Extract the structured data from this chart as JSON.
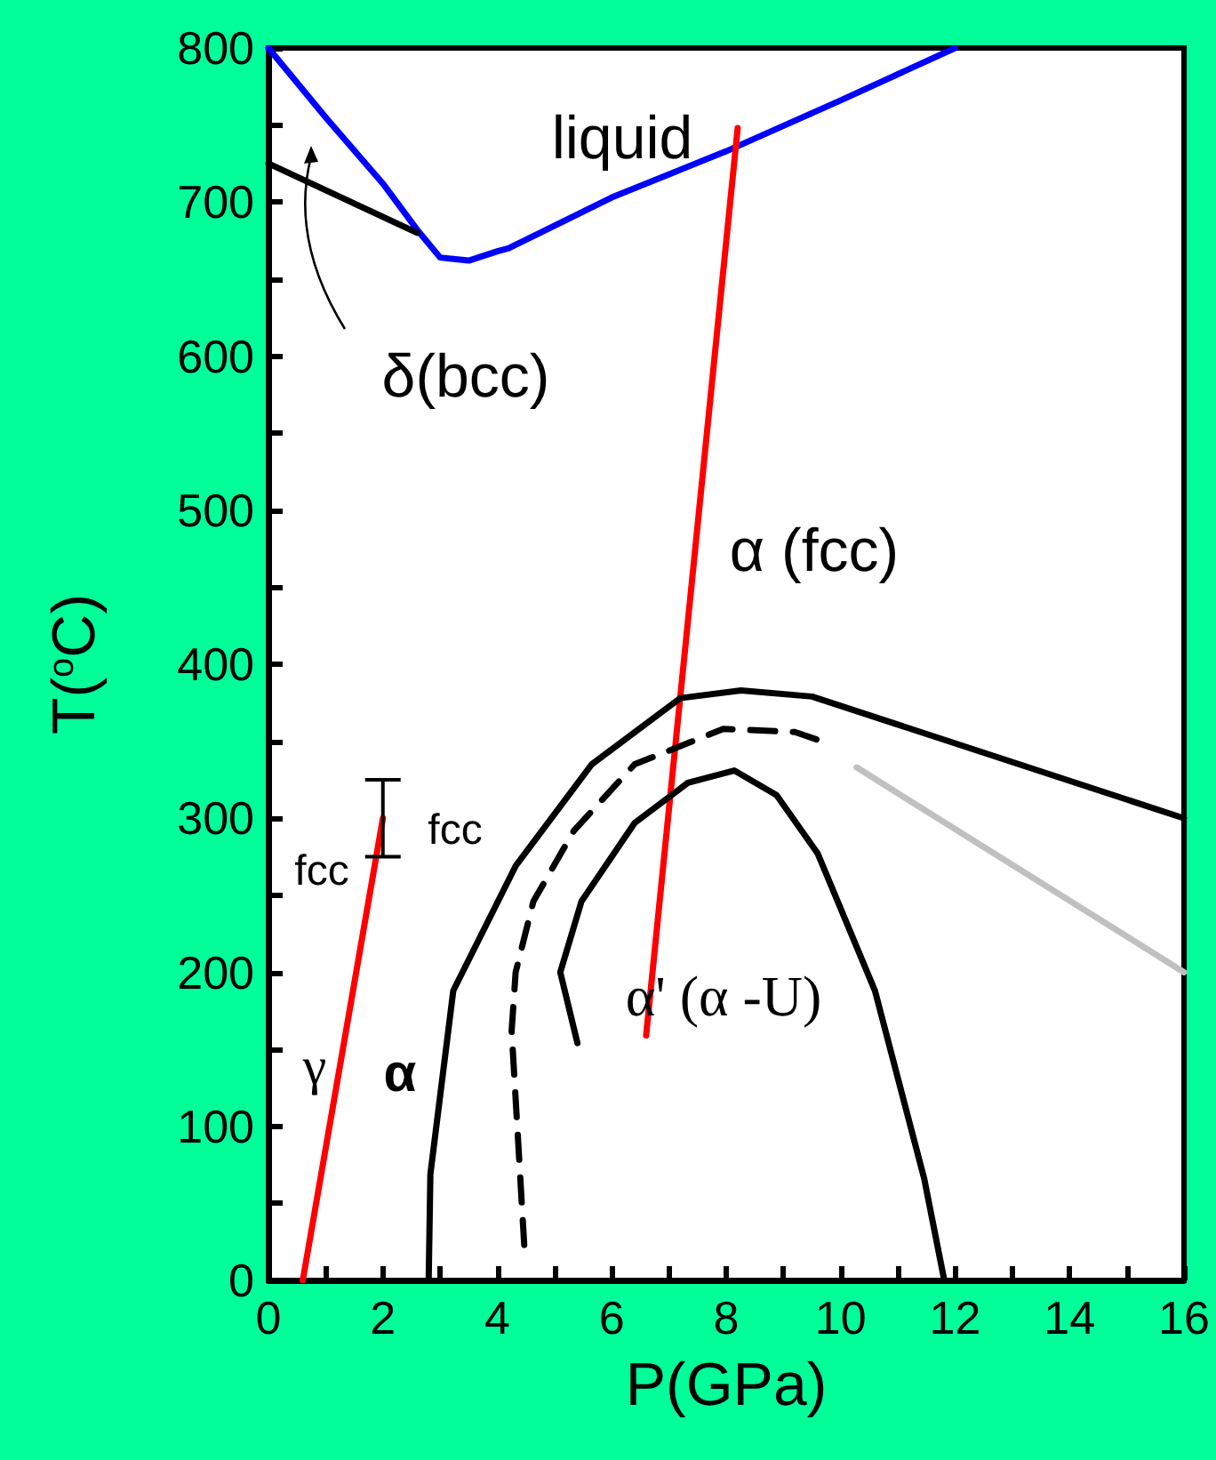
{
  "chart_data": {
    "type": "line",
    "xlabel": "P(GPa)",
    "ylabel": "T($^{o}$C)",
    "xlim": [
      0,
      16
    ],
    "ylim": [
      0,
      800
    ],
    "xticks": [
      0,
      {
        "value": 1,
        "label": null
      },
      2,
      {
        "value": 3,
        "label": null
      },
      4,
      {
        "value": 5,
        "label": null
      },
      6,
      {
        "value": 7,
        "label": null
      },
      8,
      {
        "value": 9,
        "label": null
      },
      10,
      {
        "value": 11,
        "label": null
      },
      12,
      {
        "value": 13,
        "label": null
      },
      14,
      {
        "value": 15,
        "label": null
      },
      16
    ],
    "yticks": [
      0,
      {
        "value": 50,
        "label": null
      },
      100,
      {
        "value": 150,
        "label": null
      },
      200,
      {
        "value": 250,
        "label": null
      },
      300,
      {
        "value": 350,
        "label": null
      },
      400,
      {
        "value": 450,
        "label": null
      },
      500,
      {
        "value": 550,
        "label": null
      },
      600,
      {
        "value": 650,
        "label": null
      },
      700,
      {
        "value": 750,
        "label": null
      },
      800
    ],
    "grid": false,
    "marker": "none",
    "line_style": "solid",
    "series": [
      {
        "color": "#0000ff",
        "x": [
          0,
          1,
          2,
          2.6,
          3.0,
          3.5,
          4.0,
          4.2,
          6,
          8,
          10,
          12
        ],
        "values": [
          800,
          755,
          712,
          682,
          664,
          662,
          668,
          670,
          703,
          733,
          766,
          800
        ]
      },
      {
        "color": "#000000",
        "x": [
          0,
          2.6
        ],
        "values": [
          725,
          680
        ]
      },
      {
        "color": "#ff0000",
        "x": [
          6.6,
          8.2
        ],
        "values": [
          159,
          748
        ]
      },
      {
        "color": "#ff0000",
        "x": [
          0.6,
          2
        ],
        "values": [
          0,
          300
        ],
        "errors": [
          null,
          [
            275,
            325
          ]
        ]
      },
      {
        "color": "#000000",
        "x": [
          2.8,
          2.83,
          3.23,
          4.32,
          5.65,
          7.2,
          8.26,
          9.5,
          16
        ],
        "values": [
          0,
          69,
          188,
          269,
          335,
          378,
          383,
          379,
          300
        ]
      },
      {
        "color": "#000000",
        "line_style": "dashed",
        "x": [
          4.47,
          4.25,
          4.32,
          4.63,
          5.34,
          6.4,
          7.95,
          9.2,
          9.75
        ],
        "values": [
          23,
          162,
          200,
          246,
          292,
          335,
          358,
          356,
          349
        ]
      },
      {
        "color": "#c0c0c0",
        "x": [
          10.28,
          16
        ],
        "values": [
          333,
          200
        ]
      },
      {
        "color": "#000000",
        "x": [
          5.4,
          5.1,
          5.47,
          6.4,
          7.33,
          8.14,
          8.88,
          9.6,
          10.6,
          11.46,
          11.8
        ],
        "values": [
          154,
          200,
          246,
          297,
          323,
          331,
          315,
          277,
          188,
          66,
          2
        ]
      }
    ],
    "annotations": [
      "liquid",
      "δ(bcc)",
      "α (fcc)",
      "fcc",
      "fcc",
      "γ",
      "α",
      "α' (α -U)"
    ]
  }
}
